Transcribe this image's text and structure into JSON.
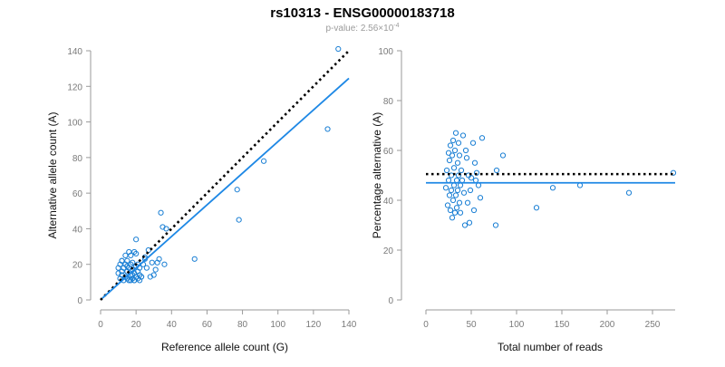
{
  "title": "rs10313 - ENSG00000183718",
  "subtitle": {
    "prefix": "p-value: 2.56×10",
    "exponent": "-4"
  },
  "colors": {
    "point": "#1a7fd4",
    "fit_line": "#1e88e5",
    "reference_line": "#000000",
    "axis": "#9a9a9a",
    "tick_label": "#7a7a7a"
  },
  "chart_data": [
    {
      "type": "scatter",
      "xlabel": "Reference allele count (G)",
      "ylabel": "Alternative allele count (A)",
      "xlim": [
        0,
        140
      ],
      "ylim": [
        0,
        140
      ],
      "xticks": [
        0,
        20,
        40,
        60,
        80,
        100,
        120,
        140
      ],
      "yticks": [
        0,
        20,
        40,
        60,
        80,
        100,
        120,
        140
      ],
      "grid": false,
      "points": {
        "x": [
          10,
          10,
          11,
          11,
          12,
          12,
          12,
          13,
          13,
          14,
          14,
          14,
          15,
          15,
          15,
          16,
          16,
          16,
          17,
          17,
          17,
          18,
          18,
          18,
          19,
          19,
          19,
          20,
          20,
          20,
          21,
          21,
          21,
          22,
          22,
          23,
          24,
          25,
          26,
          27,
          28,
          29,
          30,
          31,
          32,
          33,
          34,
          35,
          36,
          37,
          12,
          15,
          18,
          20,
          22,
          25,
          17,
          19,
          23,
          53,
          77,
          78,
          92,
          128,
          134
        ],
        "y": [
          15,
          18,
          12,
          20,
          14,
          16,
          22,
          11,
          18,
          13,
          20,
          25,
          12,
          16,
          22,
          11,
          18,
          27,
          14,
          20,
          25,
          12,
          17,
          21,
          11,
          15,
          27,
          13,
          19,
          34,
          12,
          16,
          20,
          11,
          14,
          13,
          20,
          23,
          18,
          28,
          13,
          21,
          14,
          17,
          21,
          23,
          49,
          41,
          20,
          40,
          22,
          19,
          14,
          26,
          18,
          24,
          11,
          11,
          13,
          23,
          62,
          45,
          78,
          96,
          141
        ]
      },
      "reference_line": {
        "style": "dotted",
        "slope": 1,
        "intercept": 0
      },
      "fit_line": {
        "style": "solid",
        "x": [
          1,
          140
        ],
        "y": [
          1,
          124.5
        ]
      }
    },
    {
      "type": "scatter",
      "xlabel": "Total number of reads",
      "ylabel": "Percentage alternative (A)",
      "xlim": [
        0,
        275
      ],
      "ylim": [
        0,
        100
      ],
      "xticks": [
        0,
        50,
        100,
        150,
        200,
        250
      ],
      "yticks": [
        0,
        20,
        40,
        60,
        80,
        100
      ],
      "grid": false,
      "points": {
        "x": [
          22,
          23,
          24,
          25,
          25,
          26,
          26,
          27,
          27,
          28,
          28,
          29,
          29,
          30,
          30,
          31,
          31,
          32,
          32,
          33,
          33,
          34,
          34,
          35,
          35,
          36,
          36,
          37,
          37,
          38,
          38,
          39,
          40,
          41,
          42,
          43,
          44,
          45,
          46,
          47,
          48,
          49,
          50,
          52,
          53,
          54,
          55,
          56,
          58,
          60,
          62,
          77,
          78,
          85,
          122,
          140,
          170,
          224,
          273
        ],
        "y": [
          45,
          52,
          38,
          48,
          59,
          42,
          56,
          36,
          62,
          44,
          50,
          33,
          58,
          40,
          64,
          46,
          53,
          35,
          60,
          42,
          67,
          48,
          37,
          55,
          44,
          63,
          50,
          39,
          58,
          46,
          35,
          52,
          48,
          66,
          43,
          30,
          60,
          57,
          39,
          50,
          31,
          44,
          49,
          63,
          36,
          55,
          48,
          51,
          46,
          41,
          65,
          30,
          52,
          58,
          37,
          45,
          46,
          43,
          51
        ]
      },
      "reference_line": {
        "style": "dotted",
        "y": 50.5
      },
      "fit_line": {
        "style": "solid",
        "y": 47
      }
    }
  ]
}
